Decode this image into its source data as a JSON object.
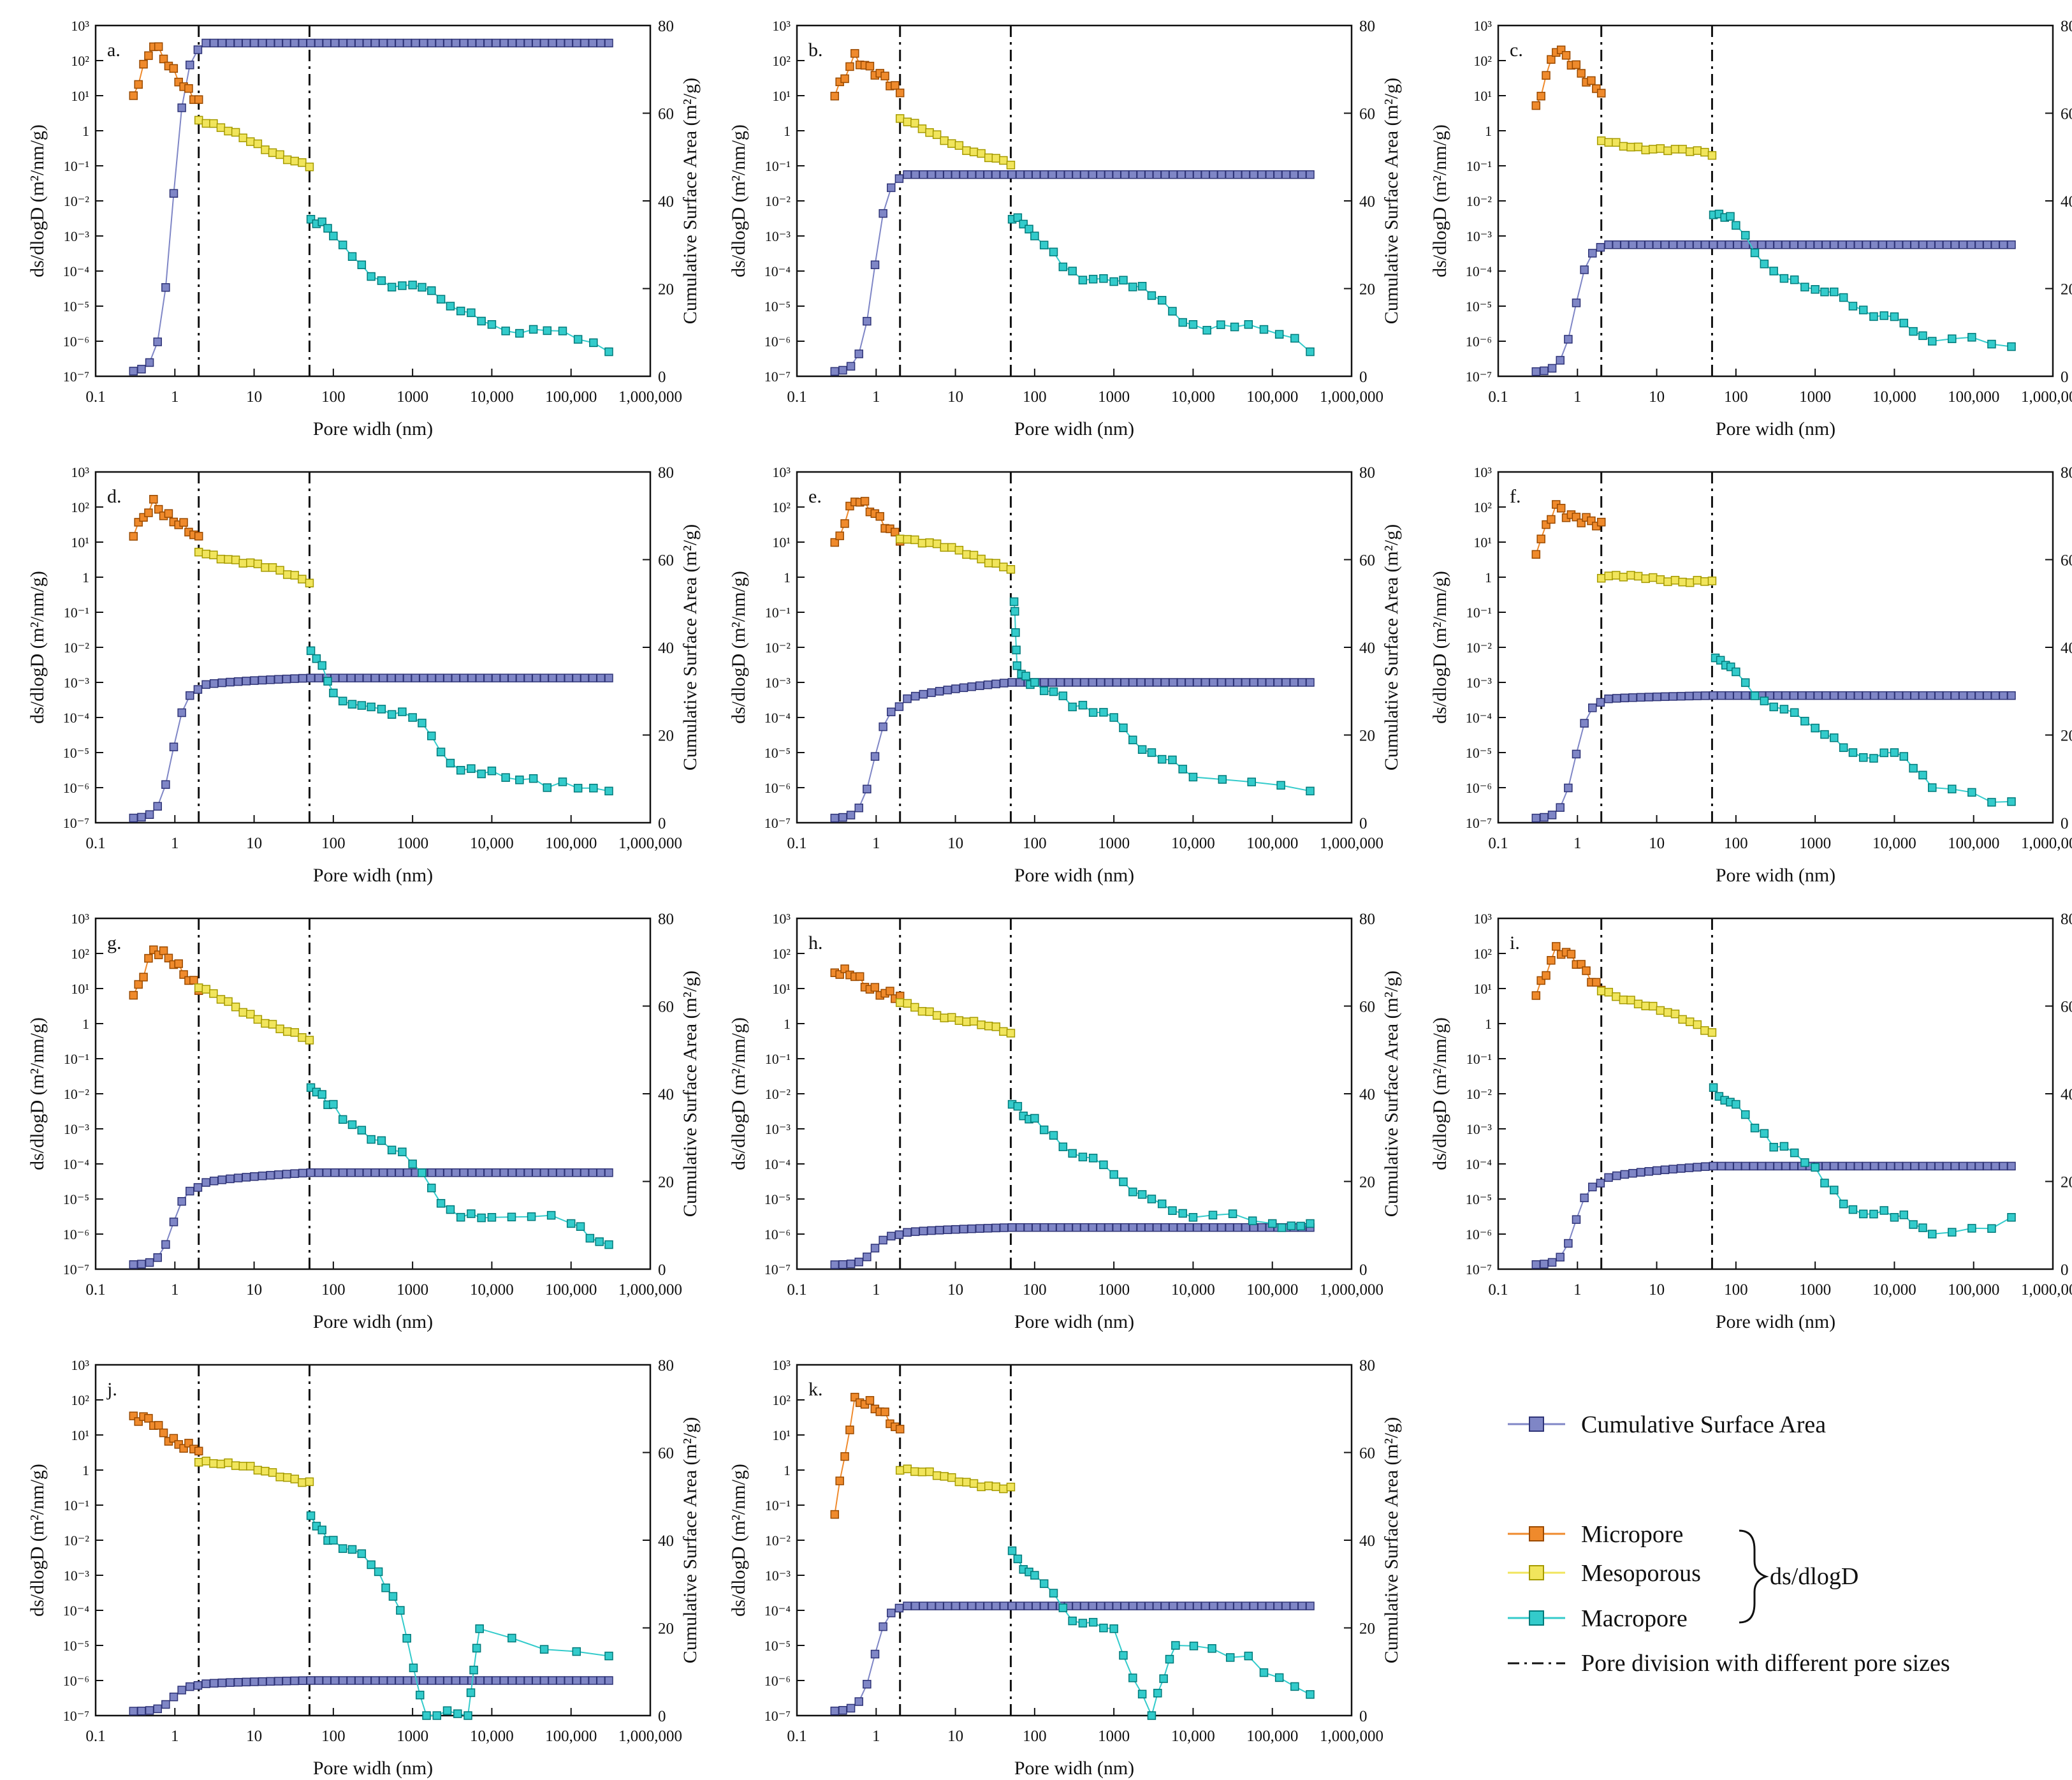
{
  "colors": {
    "cumulative": "#7f86c6",
    "cumulative_stroke": "#2f3477",
    "micropore": "#ef8a2c",
    "micropore_stroke": "#9a4a00",
    "mesopore": "#f1e55c",
    "mesopore_stroke": "#a59a00",
    "macropore": "#33cbcb",
    "macropore_stroke": "#007a7a",
    "axis": "#111111"
  },
  "axes": {
    "xlabel": "Pore widh (nm)",
    "ylabel_left": "ds/dlogD (m²/nm/g)",
    "ylabel_right": "Cumulative Surface Area (m²/g)",
    "x_ticks": [
      "0.1",
      "1",
      "10",
      "100",
      "1000",
      "10,000",
      "100,000",
      "1,000,000"
    ],
    "y_left_ticks": [
      "10⁻⁷",
      "10⁻⁶",
      "10⁻⁵",
      "10⁻⁴",
      "10⁻³",
      "10⁻²",
      "10⁻¹",
      "1",
      "10¹",
      "10²",
      "10³"
    ],
    "y_right_ticks": [
      "0",
      "20",
      "40",
      "60",
      "80"
    ]
  },
  "legend": {
    "cumulative": "Cumulative Surface Area",
    "micropore": "Micropore",
    "mesopore": "Mesoporous",
    "macropore": "Macropore",
    "group": "ds/dlogD",
    "division": "Pore division with different pore sizes"
  },
  "chart_data": [
    {
      "type": "line",
      "panel": "a.",
      "xlim": [
        0.1,
        1000000
      ],
      "ylim_left": [
        1e-07,
        1000
      ],
      "ylim_right": [
        0,
        80
      ],
      "pore_divisions": [
        2,
        50
      ],
      "micro": {
        "start": 10,
        "peak": 200,
        "end": 10
      },
      "meso": {
        "start": 2,
        "end": 0.1
      },
      "macro": [
        [
          52,
          0.003
        ],
        [
          100,
          0.001
        ],
        [
          300,
          7e-05
        ],
        [
          1000,
          4e-05
        ],
        [
          3000,
          1e-05
        ],
        [
          10000,
          3e-06
        ],
        [
          50000,
          2e-06
        ],
        [
          300000,
          5e-07
        ]
      ],
      "cumulative": {
        "micro_end": 76,
        "meso_end": 76,
        "final": 76
      }
    },
    {
      "type": "line",
      "panel": "b.",
      "xlim": [
        0.1,
        1000000
      ],
      "ylim_left": [
        1e-07,
        1000
      ],
      "ylim_right": [
        0,
        80
      ],
      "pore_divisions": [
        2,
        50
      ],
      "micro": {
        "start": 10,
        "peak": 200,
        "end": 8
      },
      "meso": {
        "start": 2,
        "end": 0.1
      },
      "macro": [
        [
          52,
          0.003
        ],
        [
          100,
          0.001
        ],
        [
          300,
          0.0001
        ],
        [
          1000,
          5e-05
        ],
        [
          3000,
          2e-05
        ],
        [
          10000,
          3e-06
        ],
        [
          50000,
          3e-06
        ],
        [
          300000,
          5e-07
        ]
      ],
      "cumulative": {
        "micro_end": 46,
        "meso_end": 46,
        "final": 46
      }
    },
    {
      "type": "line",
      "panel": "c.",
      "xlim": [
        0.1,
        1000000
      ],
      "ylim_left": [
        1e-07,
        1000
      ],
      "ylim_right": [
        0,
        80
      ],
      "pore_divisions": [
        2,
        50
      ],
      "micro": {
        "start": 5,
        "peak": 150,
        "end": 20
      },
      "meso": {
        "start": 0.5,
        "end": 0.2
      },
      "macro": [
        [
          52,
          0.004
        ],
        [
          100,
          0.002
        ],
        [
          300,
          0.0001
        ],
        [
          1000,
          3e-05
        ],
        [
          3000,
          1e-05
        ],
        [
          10000,
          5e-06
        ],
        [
          30000,
          1e-06
        ],
        [
          300000,
          7e-07
        ]
      ],
      "cumulative": {
        "micro_end": 30,
        "meso_end": 30,
        "final": 30
      }
    },
    {
      "type": "line",
      "panel": "d.",
      "xlim": [
        0.1,
        1000000
      ],
      "ylim_left": [
        1e-07,
        1000
      ],
      "ylim_right": [
        0,
        80
      ],
      "pore_divisions": [
        2,
        50
      ],
      "micro": {
        "start": 15,
        "peak": 200,
        "end": 8
      },
      "meso": {
        "start": 6,
        "end": 0.8
      },
      "macro": [
        [
          52,
          0.008
        ],
        [
          100,
          0.0005
        ],
        [
          300,
          0.0002
        ],
        [
          1000,
          0.0001
        ],
        [
          3000,
          5e-06
        ],
        [
          10000,
          3e-06
        ],
        [
          50000,
          1e-06
        ],
        [
          300000,
          8e-07
        ]
      ],
      "cumulative": {
        "micro_end": 31,
        "meso_end": 33,
        "final": 33
      }
    },
    {
      "type": "line",
      "panel": "e.",
      "xlim": [
        0.1,
        1000000
      ],
      "ylim_left": [
        1e-07,
        1000
      ],
      "ylim_right": [
        0,
        80
      ],
      "pore_divisions": [
        2,
        50
      ],
      "micro": {
        "start": 10,
        "peak": 120,
        "end": 20
      },
      "meso": {
        "start": 15,
        "end": 2
      },
      "macro": [
        [
          55,
          0.2
        ],
        [
          60,
          0.003
        ],
        [
          100,
          0.001
        ],
        [
          300,
          0.0002
        ],
        [
          1000,
          0.0001
        ],
        [
          3000,
          1e-05
        ],
        [
          10000,
          2e-06
        ],
        [
          300000,
          8e-07
        ]
      ],
      "cumulative": {
        "micro_end": 27,
        "meso_end": 32,
        "final": 32
      }
    },
    {
      "type": "line",
      "panel": "f.",
      "xlim": [
        0.1,
        1000000
      ],
      "ylim_left": [
        1e-07,
        1000
      ],
      "ylim_right": [
        0,
        80
      ],
      "pore_divisions": [
        2,
        50
      ],
      "micro": {
        "start": 4,
        "peak": 150,
        "end": 20
      },
      "meso": {
        "start": 1,
        "end": 0.8
      },
      "macro": [
        [
          55,
          0.005
        ],
        [
          100,
          0.002
        ],
        [
          300,
          0.0002
        ],
        [
          1000,
          5e-05
        ],
        [
          3000,
          1e-05
        ],
        [
          10000,
          1e-05
        ],
        [
          30000,
          1e-06
        ],
        [
          300000,
          4e-07
        ]
      ],
      "cumulative": {
        "micro_end": 28,
        "meso_end": 29,
        "final": 29
      }
    },
    {
      "type": "line",
      "panel": "g.",
      "xlim": [
        0.1,
        1000000
      ],
      "ylim_left": [
        1e-07,
        1000
      ],
      "ylim_right": [
        0,
        80
      ],
      "pore_divisions": [
        2,
        50
      ],
      "micro": {
        "start": 8,
        "peak": 100,
        "end": 15
      },
      "meso": {
        "start": 10,
        "end": 0.3
      },
      "macro": [
        [
          52,
          0.015
        ],
        [
          100,
          0.005
        ],
        [
          300,
          0.0005
        ],
        [
          1000,
          0.0001
        ],
        [
          3000,
          5e-06
        ],
        [
          10000,
          3e-06
        ],
        [
          100000,
          2e-06
        ],
        [
          300000,
          5e-07
        ]
      ],
      "cumulative": {
        "micro_end": 19,
        "meso_end": 22,
        "final": 22
      }
    },
    {
      "type": "line",
      "panel": "h.",
      "xlim": [
        0.1,
        1000000
      ],
      "ylim_left": [
        1e-07,
        1000
      ],
      "ylim_right": [
        0,
        80
      ],
      "pore_divisions": [
        2,
        50
      ],
      "micro": {
        "start": 20,
        "peak": 30,
        "end": 4
      },
      "meso": {
        "start": 4,
        "end": 0.5
      },
      "macro": [
        [
          52,
          0.005
        ],
        [
          100,
          0.002
        ],
        [
          300,
          0.0002
        ],
        [
          1000,
          5e-05
        ],
        [
          3000,
          1e-05
        ],
        [
          10000,
          3e-06
        ],
        [
          100000,
          2e-06
        ],
        [
          300000,
          2e-06
        ]
      ],
      "cumulative": {
        "micro_end": 8,
        "meso_end": 9.5,
        "final": 9.5
      }
    },
    {
      "type": "line",
      "panel": "i.",
      "xlim": [
        0.1,
        1000000
      ],
      "ylim_left": [
        1e-07,
        1000
      ],
      "ylim_right": [
        0,
        80
      ],
      "pore_divisions": [
        2,
        50
      ],
      "micro": {
        "start": 10,
        "peak": 120,
        "end": 12
      },
      "meso": {
        "start": 10,
        "end": 0.6
      },
      "macro": [
        [
          52,
          0.015
        ],
        [
          100,
          0.005
        ],
        [
          300,
          0.0003
        ],
        [
          1000,
          8e-05
        ],
        [
          3000,
          5e-06
        ],
        [
          10000,
          3e-06
        ],
        [
          30000,
          1e-06
        ],
        [
          300000,
          3e-06
        ]
      ],
      "cumulative": {
        "micro_end": 20,
        "meso_end": 23.5,
        "final": 23.5
      }
    },
    {
      "type": "line",
      "panel": "j.",
      "xlim": [
        0.1,
        1000000
      ],
      "ylim_left": [
        1e-07,
        1000
      ],
      "ylim_right": [
        0,
        80
      ],
      "pore_divisions": [
        2,
        50
      ],
      "micro": {
        "start": 20,
        "peak": 25,
        "end": 3
      },
      "meso": {
        "start": 2,
        "end": 0.5
      },
      "macro": [
        [
          52,
          0.05
        ],
        [
          100,
          0.01
        ],
        [
          300,
          0.002
        ],
        [
          700,
          0.0001
        ],
        [
          1500,
          1e-07
        ],
        [
          5000,
          1e-07
        ],
        [
          7000,
          3e-05
        ],
        [
          300000,
          5e-06
        ]
      ],
      "cumulative": {
        "micro_end": 7,
        "meso_end": 8,
        "final": 8
      }
    },
    {
      "type": "line",
      "panel": "k.",
      "xlim": [
        0.1,
        1000000
      ],
      "ylim_left": [
        1e-07,
        1000
      ],
      "ylim_right": [
        0,
        80
      ],
      "pore_divisions": [
        2,
        50
      ],
      "micro": {
        "start": 0.1,
        "peak": 100,
        "end": 15
      },
      "meso": {
        "start": 1,
        "end": 0.3
      },
      "macro": [
        [
          52,
          0.005
        ],
        [
          100,
          0.001
        ],
        [
          300,
          5e-05
        ],
        [
          1000,
          3e-05
        ],
        [
          3000,
          1e-07
        ],
        [
          6000,
          1e-05
        ],
        [
          50000,
          5e-06
        ],
        [
          300000,
          4e-07
        ]
      ],
      "cumulative": {
        "micro_end": 25,
        "meso_end": 25,
        "final": 25
      }
    }
  ]
}
